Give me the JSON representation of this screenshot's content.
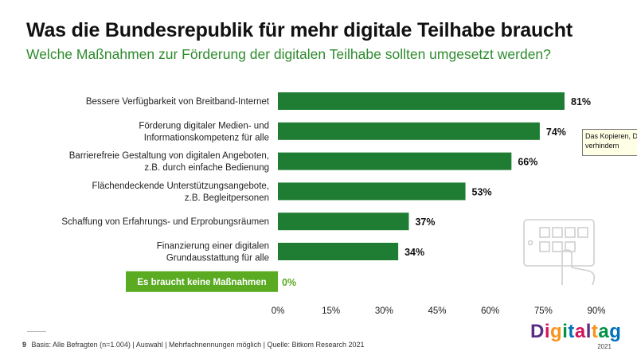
{
  "title": "Was die Bundesrepublik für mehr digitale Teilhabe braucht",
  "subtitle": "Welche Maßnahmen zur Förderung der digitalen Teilhabe sollten umgesetzt werden?",
  "colors": {
    "bar": "#1e7d32",
    "highlight": "#5aab21",
    "accent_text": "#2e8b2e"
  },
  "chart_data": {
    "type": "bar",
    "orientation": "horizontal",
    "categories": [
      [
        "Bessere Verfügbarkeit von Breitband-Internet"
      ],
      [
        "Förderung digitaler Medien- und",
        "Informationskompetenz für alle"
      ],
      [
        "Barrierefreie Gestaltung von digitalen Angeboten,",
        "z.B. durch einfache Bedienung"
      ],
      [
        "Flächendeckende Unterstützungsangebote,",
        "z.B. Begleitpersonen"
      ],
      [
        "Schaffung von Erfahrungs- und Erprobungsräumen"
      ],
      [
        "Finanzierung einer digitalen",
        "Grundausstattung für alle"
      ],
      [
        "Es braucht keine Maßnahmen"
      ]
    ],
    "values": [
      81,
      74,
      66,
      53,
      37,
      34,
      0
    ],
    "value_labels": [
      "81%",
      "74%",
      "66%",
      "53%",
      "37%",
      "34%",
      "0%"
    ],
    "highlighted_category": "Es braucht keine Maßnahmen",
    "xlim": [
      0,
      90
    ],
    "xticks": [
      0,
      15,
      30,
      45,
      60,
      75,
      90
    ],
    "xtick_labels": [
      "0%",
      "15%",
      "30%",
      "45%",
      "60%",
      "75%",
      "90%"
    ],
    "xlabel": "",
    "ylabel": "",
    "grid": false,
    "legend": "none"
  },
  "tooltip": {
    "lines": [
      "Das Kopieren, Dru",
      "verhindern"
    ]
  },
  "footer": {
    "page_number": "9",
    "text": "Basis: Alle Befragten (n=1.004) | Auswahl | Mehrfachnennungen möglich | Quelle: Bitkom Research 2021"
  },
  "logo": {
    "text": "Digitaltag",
    "year": "2021",
    "letter_colors": [
      "#5a2d82",
      "#d4145a",
      "#f7941d",
      "#009245",
      "#0071bc",
      "#d4145a",
      "#5a2d82",
      "#f7941d",
      "#009245",
      "#0071bc"
    ]
  },
  "icons": {
    "background": "tablet-hand-icon"
  }
}
